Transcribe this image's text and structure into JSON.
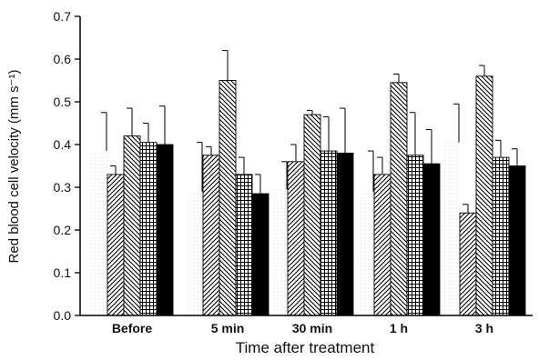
{
  "chart_data": {
    "type": "bar",
    "title": "",
    "xlabel": "Time after treatment",
    "ylabel": "Red blood cell velocity (mm s⁻¹)",
    "ylim": [
      0,
      0.7
    ],
    "y_ticks": [
      "0.0",
      "0.1",
      "0.2",
      "0.3",
      "0.4",
      "0.5",
      "0.6",
      "0.7"
    ],
    "y_tick_values": [
      0,
      0.1,
      0.2,
      0.3,
      0.4,
      0.5,
      0.6,
      0.7
    ],
    "categories": [
      "Before",
      "5 min",
      "30 min",
      "1 h",
      "3 h"
    ],
    "grid": false,
    "legend": "none",
    "series": [
      {
        "fill": "dotted-light",
        "values": [
          0.385,
          0.29,
          0.295,
          0.29,
          0.405
        ],
        "errors": [
          0.09,
          0.115,
          0.065,
          0.095,
          0.09
        ]
      },
      {
        "fill": "diagonal-right",
        "values": [
          0.33,
          0.375,
          0.36,
          0.33,
          0.24
        ],
        "errors": [
          0.02,
          0.02,
          0.04,
          0.04,
          0.02
        ]
      },
      {
        "fill": "diagonal-left",
        "values": [
          0.42,
          0.55,
          0.47,
          0.545,
          0.56
        ],
        "errors": [
          0.065,
          0.07,
          0.01,
          0.02,
          0.025
        ]
      },
      {
        "fill": "grid",
        "values": [
          0.405,
          0.33,
          0.385,
          0.375,
          0.37
        ],
        "errors": [
          0.045,
          0.04,
          0.08,
          0.1,
          0.04
        ]
      },
      {
        "fill": "solid-black",
        "values": [
          0.4,
          0.285,
          0.38,
          0.355,
          0.35
        ],
        "errors": [
          0.09,
          0.045,
          0.105,
          0.08,
          0.04
        ]
      }
    ]
  }
}
